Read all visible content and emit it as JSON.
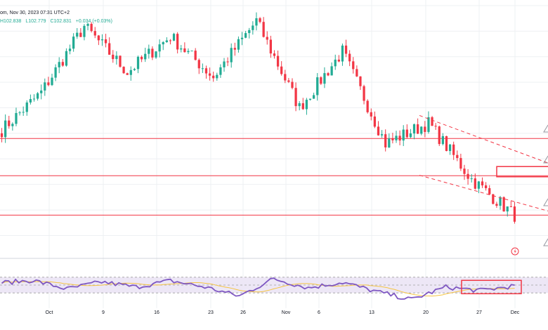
{
  "header": {
    "info_fragment": "om, Nov 30, 2023 07:31 UTC+2",
    "high": "H102.838",
    "low": "L102.779",
    "close": "C102.831",
    "change": "+0.034 (+0.03%)"
  },
  "colors": {
    "up": "#22ab94",
    "down": "#f23645",
    "level_line": "#f23645",
    "rsi_line": "#7e57c2",
    "rsi_ma": "#f5c542",
    "rsi_band": "#ede7f6",
    "grid": "#eef0f3"
  },
  "chart_data": [
    {
      "type": "candlestick",
      "x_ticks": [
        "Oct",
        "9",
        "16",
        "23",
        "26",
        "Nov",
        "6",
        "13",
        "20",
        "27",
        "Dec"
      ],
      "y_range": [
        101.3,
        106.0
      ],
      "segments": [
        [
          103.5,
          104.3
        ],
        [
          104.3,
          105.6
        ],
        [
          105.6,
          104.7
        ],
        [
          104.7,
          105.4
        ],
        [
          105.4,
          104.6
        ],
        [
          104.6,
          105.7
        ],
        [
          105.7,
          104.0
        ],
        [
          104.0,
          105.1
        ],
        [
          105.1,
          103.3
        ],
        [
          103.3,
          103.7
        ],
        [
          103.7,
          102.6
        ],
        [
          102.6,
          101.9
        ]
      ],
      "annotations": {
        "horizontal_levels": [
          103.4,
          102.67,
          101.9
        ],
        "channel_upper": [
          [
            "Nov 20",
            103.85
          ],
          [
            "Dec 1",
            102.92
          ]
        ],
        "channel_lower": [
          [
            "Nov 20",
            102.68
          ],
          [
            "Dec 1",
            101.98
          ]
        ],
        "highlight_box": {
          "y_top": 102.85,
          "y_bottom": 102.65
        }
      }
    },
    {
      "type": "line",
      "indicator": "RSI",
      "y_range": [
        0,
        100
      ],
      "band": [
        30,
        70
      ],
      "levels": [
        30,
        50,
        70
      ],
      "segments": [
        [
          55,
          62
        ],
        [
          62,
          40
        ],
        [
          40,
          58
        ],
        [
          58,
          45
        ],
        [
          45,
          61
        ],
        [
          61,
          45
        ],
        [
          45,
          22
        ],
        [
          22,
          66
        ],
        [
          66,
          43
        ],
        [
          43,
          57
        ],
        [
          57,
          33
        ],
        [
          33,
          13
        ],
        [
          13,
          45
        ],
        [
          45,
          36
        ],
        [
          36,
          48
        ]
      ],
      "highlight_box": {
        "y_top": 62,
        "y_bottom": 28
      }
    }
  ]
}
